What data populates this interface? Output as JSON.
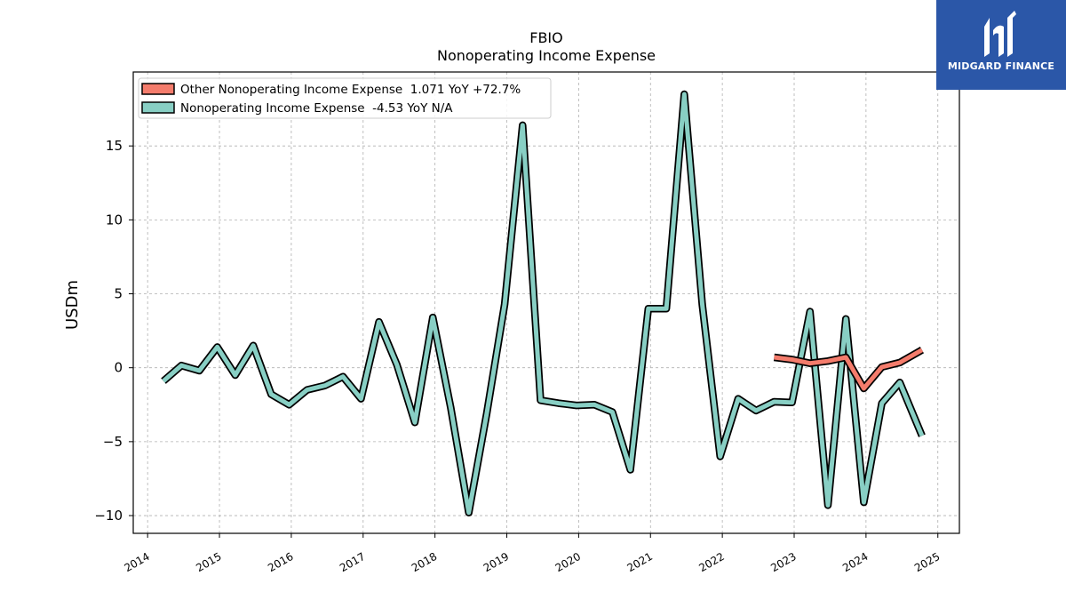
{
  "logo": {
    "text": "MIDGARD FINANCE",
    "bg_color": "#2b57a8"
  },
  "chart_data": {
    "type": "line",
    "title": "FBIO",
    "subtitle": "Nonoperating Income Expense",
    "ylabel": "USDm",
    "xlabel": "",
    "xlim": [
      2013.8,
      2025.3
    ],
    "ylim": [
      -11.2,
      20
    ],
    "x_ticks": [
      2014,
      2015,
      2016,
      2017,
      2018,
      2019,
      2020,
      2021,
      2022,
      2023,
      2024,
      2025
    ],
    "x_tick_labels": [
      "2014",
      "2015",
      "2016",
      "2017",
      "2018",
      "2019",
      "2020",
      "2021",
      "2022",
      "2023",
      "2024",
      "2025"
    ],
    "y_ticks": [
      -10,
      -5,
      0,
      5,
      10,
      15
    ],
    "y_tick_labels": [
      "−10",
      "−5",
      "0",
      "5",
      "10",
      "15"
    ],
    "grid": true,
    "legend_position": "top-left",
    "series": [
      {
        "name": "Other Nonoperating Income Expense",
        "legend_label": "Other Nonoperating Income Expense  1.071 YoY +72.7%",
        "color": "#f47c6c",
        "points": [
          [
            2022.72,
            0.7
          ],
          [
            2022.97,
            0.55
          ],
          [
            2023.22,
            0.3
          ],
          [
            2023.47,
            0.45
          ],
          [
            2023.72,
            0.7
          ],
          [
            2023.97,
            -1.4
          ],
          [
            2024.22,
            0.05
          ],
          [
            2024.47,
            0.35
          ],
          [
            2024.78,
            1.2
          ]
        ]
      },
      {
        "name": "Nonoperating Income Expense",
        "legend_label": "Nonoperating Income Expense  -4.53 YoY N/A",
        "color": "#88cfc4",
        "points": [
          [
            2014.22,
            -0.9
          ],
          [
            2014.47,
            0.15
          ],
          [
            2014.72,
            -0.2
          ],
          [
            2014.97,
            1.4
          ],
          [
            2015.22,
            -0.5
          ],
          [
            2015.47,
            1.5
          ],
          [
            2015.72,
            -1.8
          ],
          [
            2015.97,
            -2.5
          ],
          [
            2016.22,
            -1.5
          ],
          [
            2016.47,
            -1.2
          ],
          [
            2016.72,
            -0.6
          ],
          [
            2016.97,
            -2.1
          ],
          [
            2017.22,
            3.1
          ],
          [
            2017.47,
            0.2
          ],
          [
            2017.72,
            -3.7
          ],
          [
            2017.97,
            3.4
          ],
          [
            2018.22,
            -2.7
          ],
          [
            2018.47,
            -9.8
          ],
          [
            2018.72,
            -3.1
          ],
          [
            2018.97,
            4.3
          ],
          [
            2019.22,
            16.4
          ],
          [
            2019.47,
            -2.2
          ],
          [
            2019.72,
            -2.4
          ],
          [
            2019.97,
            -2.55
          ],
          [
            2020.22,
            -2.5
          ],
          [
            2020.47,
            -3.0
          ],
          [
            2020.72,
            -6.9
          ],
          [
            2020.97,
            4.0
          ],
          [
            2021.22,
            4.0
          ],
          [
            2021.47,
            18.5
          ],
          [
            2021.72,
            4.3
          ],
          [
            2021.97,
            -6.0
          ],
          [
            2022.22,
            -2.1
          ],
          [
            2022.47,
            -2.9
          ],
          [
            2022.72,
            -2.3
          ],
          [
            2022.97,
            -2.35
          ],
          [
            2023.22,
            3.8
          ],
          [
            2023.47,
            -9.3
          ],
          [
            2023.72,
            3.3
          ],
          [
            2023.97,
            -9.1
          ],
          [
            2024.22,
            -2.4
          ],
          [
            2024.47,
            -1.0
          ],
          [
            2024.78,
            -4.6
          ]
        ]
      }
    ]
  }
}
